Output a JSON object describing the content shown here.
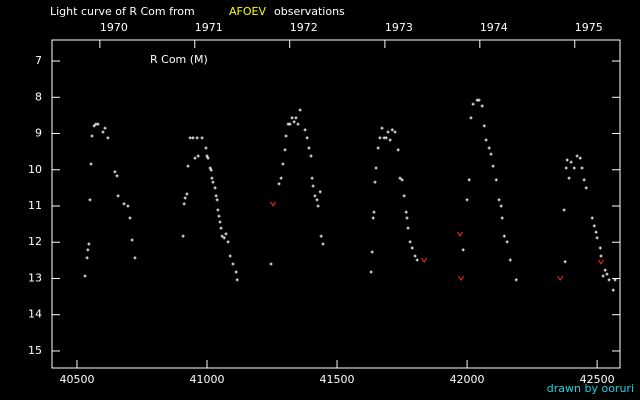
{
  "chart_data": {
    "type": "scatter",
    "title": "Light curve of R Com from",
    "source": "AFOEV",
    "title_suffix": "observations",
    "annotation": "R Com (M)",
    "credit": "drawn by ooruri",
    "xlim": [
      40404,
      42588
    ],
    "ylim": [
      15.47,
      6.42
    ],
    "xticks": [
      40500,
      41000,
      41500,
      42000,
      42500
    ],
    "yticks": [
      7,
      8,
      9,
      10,
      11,
      12,
      13,
      14,
      15
    ],
    "top_ticks": [
      {
        "value": 40588,
        "label": "1970"
      },
      {
        "value": 40953,
        "label": "1971"
      },
      {
        "value": 41318,
        "label": "1972"
      },
      {
        "value": 41684,
        "label": "1973"
      },
      {
        "value": 42049,
        "label": "1974"
      },
      {
        "value": 42414,
        "label": "1975"
      }
    ],
    "series": [
      {
        "color": "#ffffff",
        "marker": "dot",
        "x": [
          40531,
          40539,
          40542,
          40546,
          40550,
          40554,
          40558,
          40566,
          40573,
          40581,
          40600,
          40608,
          40619,
          40646,
          40654,
          40658,
          40681,
          40696,
          40704,
          40712,
          40723,
          40908,
          40912,
          40916,
          40923,
          40927,
          40935,
          40946,
          40954,
          40962,
          40966,
          40981,
          40996,
          41000,
          41004,
          41012,
          41016,
          41019,
          41023,
          41031,
          41035,
          41039,
          41042,
          41046,
          41050,
          41054,
          41058,
          41066,
          41073,
          41081,
          41089,
          41100,
          41112,
          41116,
          41246,
          41277,
          41285,
          41292,
          41300,
          41304,
          41312,
          41319,
          41327,
          41335,
          41342,
          41350,
          41358,
          41377,
          41385,
          41392,
          41400,
          41404,
          41408,
          41415,
          41423,
          41427,
          41435,
          41439,
          41446,
          41631,
          41635,
          41639,
          41642,
          41646,
          41650,
          41658,
          41665,
          41673,
          41681,
          41689,
          41696,
          41704,
          41712,
          41723,
          41735,
          41742,
          41750,
          41758,
          41766,
          41769,
          41773,
          41781,
          41789,
          41800,
          41808,
          41985,
          42000,
          42008,
          42015,
          42023,
          42039,
          42046,
          42058,
          42066,
          42073,
          42085,
          42092,
          42100,
          42112,
          42123,
          42131,
          42135,
          42143,
          42154,
          42166,
          42189,
          42373,
          42377,
          42381,
          42385,
          42392,
          42400,
          42412,
          42423,
          42435,
          42442,
          42450,
          42458,
          42481,
          42489,
          42496,
          42500,
          42512,
          42515,
          42523,
          42531,
          42538,
          42546,
          42562,
          42569
        ],
        "values": [
          12.93,
          12.43,
          12.21,
          12.05,
          10.83,
          9.84,
          9.07,
          8.79,
          8.74,
          8.74,
          8.96,
          8.85,
          9.12,
          10.06,
          10.17,
          10.72,
          10.94,
          11.0,
          11.33,
          11.94,
          12.43,
          11.83,
          10.94,
          10.78,
          10.67,
          9.9,
          9.12,
          9.12,
          9.68,
          9.12,
          9.62,
          9.12,
          9.4,
          9.62,
          9.68,
          9.95,
          10.01,
          10.23,
          10.34,
          10.5,
          10.72,
          10.83,
          11.11,
          11.28,
          11.44,
          11.61,
          11.83,
          11.88,
          11.77,
          11.99,
          12.38,
          12.6,
          12.82,
          13.04,
          12.6,
          10.39,
          10.23,
          9.84,
          9.45,
          9.07,
          8.74,
          8.74,
          8.57,
          8.68,
          8.57,
          8.74,
          8.35,
          8.9,
          9.12,
          9.4,
          9.62,
          10.23,
          10.45,
          10.72,
          10.83,
          11.0,
          10.61,
          11.83,
          12.05,
          12.82,
          12.27,
          11.33,
          11.17,
          10.34,
          9.95,
          9.4,
          9.12,
          8.85,
          9.12,
          9.12,
          8.96,
          9.18,
          8.9,
          8.96,
          9.45,
          10.23,
          10.28,
          10.72,
          11.17,
          11.33,
          11.61,
          11.99,
          12.16,
          12.38,
          12.49,
          12.21,
          10.83,
          10.28,
          8.57,
          8.19,
          8.08,
          8.08,
          8.24,
          8.79,
          9.18,
          9.4,
          9.57,
          9.9,
          10.28,
          10.83,
          11.0,
          11.33,
          11.83,
          11.99,
          12.49,
          13.04,
          11.11,
          12.54,
          9.95,
          9.73,
          10.23,
          9.79,
          9.95,
          9.62,
          9.68,
          9.95,
          10.28,
          10.5,
          11.33,
          11.55,
          11.72,
          11.88,
          12.16,
          12.38,
          12.93,
          12.77,
          12.88,
          13.04,
          13.32,
          13.04
        ]
      },
      {
        "color": "#ff2a1a",
        "marker": "v",
        "x": [
          41254,
          41835,
          41973,
          41977,
          42358,
          42515
        ],
        "values": [
          10.94,
          12.49,
          11.77,
          12.99,
          12.99,
          12.54
        ]
      }
    ]
  }
}
